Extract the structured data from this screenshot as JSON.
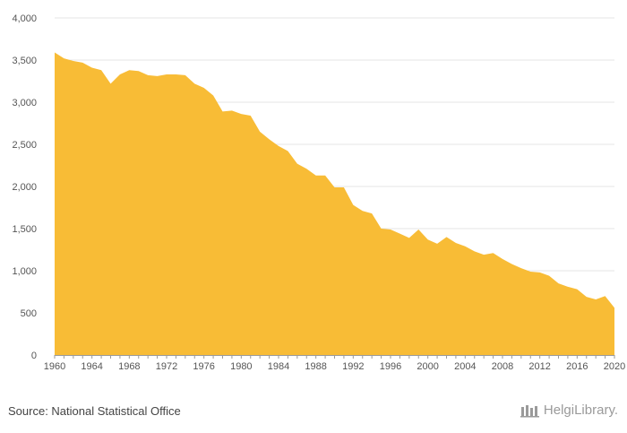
{
  "source_text": "Source: National Statistical Office",
  "logo_text": "HelgiLibrary.",
  "colors": {
    "area": "#F8BC36",
    "grid": "#e6e6e6",
    "axis": "#9a9a9a",
    "text": "#555555"
  },
  "chart_data": {
    "type": "area",
    "title": "",
    "xlabel": "",
    "ylabel": "",
    "x": [
      1960,
      1961,
      1962,
      1963,
      1964,
      1965,
      1966,
      1967,
      1968,
      1969,
      1970,
      1971,
      1972,
      1973,
      1974,
      1975,
      1976,
      1977,
      1978,
      1979,
      1980,
      1981,
      1982,
      1983,
      1984,
      1985,
      1986,
      1987,
      1988,
      1989,
      1990,
      1991,
      1992,
      1993,
      1994,
      1995,
      1996,
      1997,
      1998,
      1999,
      2000,
      2001,
      2002,
      2003,
      2004,
      2005,
      2006,
      2007,
      2008,
      2009,
      2010,
      2011,
      2012,
      2013,
      2014,
      2015,
      2016,
      2017,
      2018,
      2019,
      2020
    ],
    "values": [
      3590,
      3520,
      3490,
      3470,
      3410,
      3380,
      3220,
      3330,
      3380,
      3370,
      3320,
      3310,
      3330,
      3330,
      3320,
      3220,
      3170,
      3080,
      2890,
      2900,
      2860,
      2840,
      2650,
      2560,
      2480,
      2420,
      2270,
      2210,
      2130,
      2130,
      1990,
      1990,
      1780,
      1710,
      1680,
      1500,
      1490,
      1440,
      1390,
      1490,
      1370,
      1320,
      1400,
      1330,
      1290,
      1230,
      1190,
      1210,
      1140,
      1080,
      1030,
      990,
      980,
      940,
      850,
      810,
      780,
      690,
      660,
      700,
      560
    ],
    "xlim": [
      1960,
      2020
    ],
    "ylim": [
      0,
      4000
    ],
    "x_ticks": [
      "1960",
      "1964",
      "1968",
      "1972",
      "1976",
      "1980",
      "1984",
      "1988",
      "1992",
      "1996",
      "2000",
      "2004",
      "2008",
      "2012",
      "2016",
      "2020"
    ],
    "y_ticks": [
      "0",
      "500",
      "1,000",
      "1,500",
      "2,000",
      "2,500",
      "3,000",
      "3,500",
      "4,000"
    ],
    "grid": true,
    "legend": "none"
  }
}
